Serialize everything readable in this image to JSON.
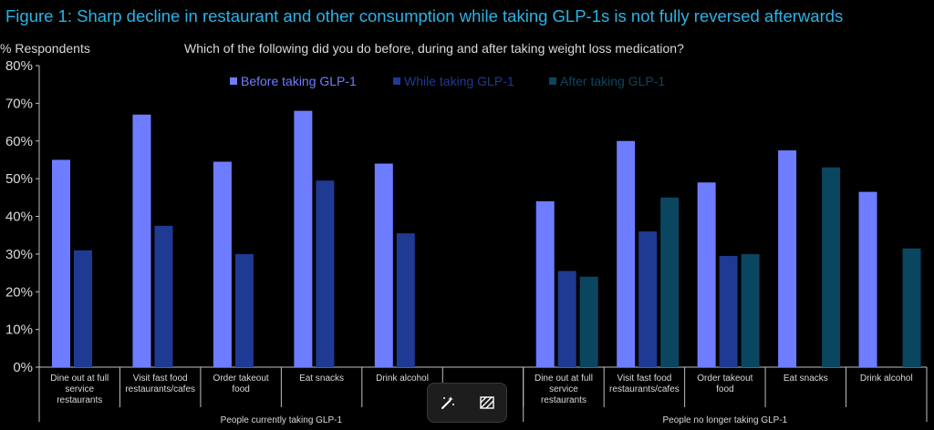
{
  "title": "Figure 1: Sharp decline in restaurant and other consumption while taking GLP-1s is not fully reversed afterwards",
  "y_axis_header": "% Respondents",
  "subtitle": "Which of the following did you do before, during and after taking weight loss medication?",
  "colors": {
    "title": "#2ab3e6",
    "before": "#6e7dff",
    "while": "#1f3a93",
    "after": "#0b4660",
    "axis": "#bfbfbf",
    "text": "#d9d9d9"
  },
  "toolbar": {
    "icons": [
      "magic-wand-icon",
      "hatch-pattern-icon"
    ]
  },
  "chart_data": {
    "type": "bar",
    "ylim": [
      0,
      80
    ],
    "yticks": [
      "0%",
      "10%",
      "20%",
      "30%",
      "40%",
      "50%",
      "60%",
      "70%",
      "80%"
    ],
    "legend": [
      {
        "name": "Before taking GLP-1",
        "color": "#6e7dff"
      },
      {
        "name": "While taking GLP-1",
        "color": "#1f3a93"
      },
      {
        "name": "After taking GLP-1",
        "color": "#0b4660"
      }
    ],
    "legend_position": "top",
    "groups": [
      {
        "label": "People currently taking GLP-1",
        "categories": [
          {
            "label": [
              "Dine out at full",
              "service",
              "restaurants"
            ],
            "values": [
              55,
              31,
              null
            ]
          },
          {
            "label": [
              "Visit fast food",
              "restaurants/cafes"
            ],
            "values": [
              67,
              37.5,
              null
            ]
          },
          {
            "label": [
              "Order takeout",
              "food"
            ],
            "values": [
              54.5,
              30,
              null
            ]
          },
          {
            "label": [
              "Eat snacks"
            ],
            "values": [
              68,
              49.5,
              null
            ]
          },
          {
            "label": [
              "Drink alcohol"
            ],
            "values": [
              54,
              35.5,
              null
            ]
          },
          {
            "label": [
              ""
            ],
            "values": [
              null,
              null,
              null
            ]
          }
        ]
      },
      {
        "label": "People no longer taking GLP-1",
        "categories": [
          {
            "label": [
              "Dine out at full",
              "service",
              "restaurants"
            ],
            "values": [
              44,
              25.5,
              24
            ]
          },
          {
            "label": [
              "Visit fast food",
              "restaurants/cafes"
            ],
            "values": [
              60,
              36,
              45
            ]
          },
          {
            "label": [
              "Order takeout",
              "food"
            ],
            "values": [
              49,
              29.5,
              30
            ]
          },
          {
            "label": [
              "Eat snacks"
            ],
            "values": [
              57.5,
              null,
              53
            ]
          },
          {
            "label": [
              "Drink alcohol"
            ],
            "values": [
              46.5,
              null,
              31.5
            ]
          }
        ]
      }
    ]
  }
}
